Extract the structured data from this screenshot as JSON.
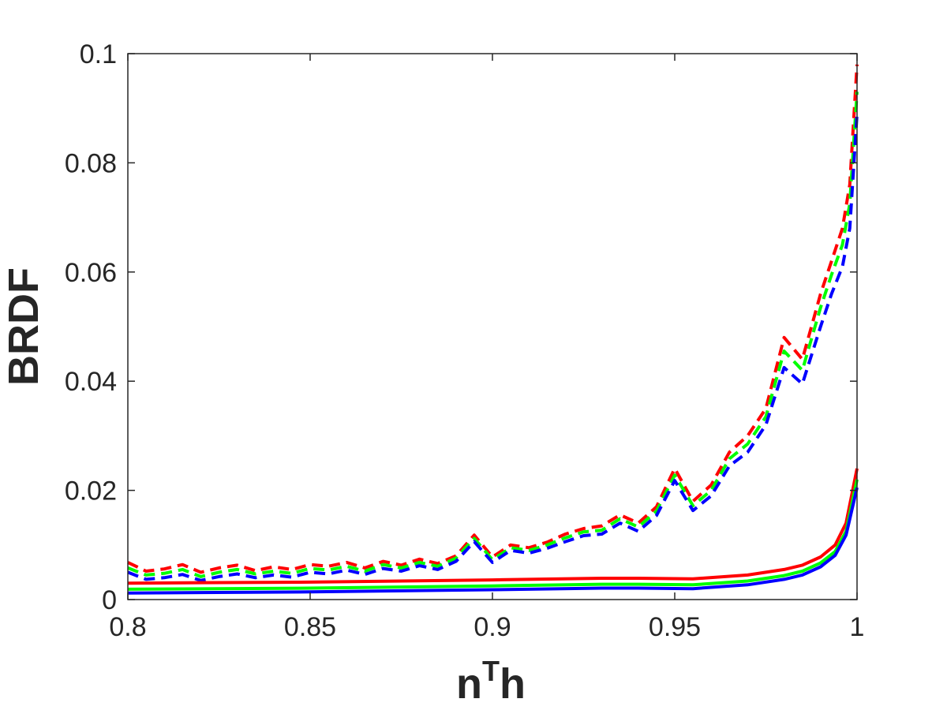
{
  "chart_data": {
    "type": "line",
    "title": "",
    "xlabel": {
      "base": "n",
      "superscript": "T",
      "tail": "h"
    },
    "ylabel": "BRDF",
    "xlim": [
      0.8,
      1.0
    ],
    "ylim": [
      0,
      0.1
    ],
    "xticks": [
      0.8,
      0.85,
      0.9,
      0.95,
      1.0
    ],
    "xtick_labels": [
      "0.8",
      "0.85",
      "0.9",
      "0.95",
      "1"
    ],
    "yticks": [
      0,
      0.02,
      0.04,
      0.06,
      0.08,
      0.1
    ],
    "ytick_labels": [
      "0",
      "0.02",
      "0.04",
      "0.06",
      "0.08",
      "0.1"
    ],
    "grid": false,
    "box": true,
    "series": [
      {
        "color": "#ff0000",
        "style": "dashed",
        "x": [
          0.8,
          0.805,
          0.81,
          0.815,
          0.82,
          0.825,
          0.83,
          0.835,
          0.84,
          0.845,
          0.85,
          0.855,
          0.86,
          0.865,
          0.87,
          0.875,
          0.88,
          0.885,
          0.89,
          0.895,
          0.9,
          0.905,
          0.91,
          0.915,
          0.92,
          0.925,
          0.93,
          0.935,
          0.94,
          0.945,
          0.95,
          0.955,
          0.96,
          0.965,
          0.97,
          0.975,
          0.98,
          0.985,
          0.99,
          0.993,
          0.996,
          0.998,
          1.0
        ],
        "y": [
          0.0068,
          0.0052,
          0.0056,
          0.0064,
          0.005,
          0.0058,
          0.0063,
          0.0053,
          0.006,
          0.0055,
          0.0064,
          0.0061,
          0.0068,
          0.0058,
          0.007,
          0.0063,
          0.0074,
          0.0066,
          0.008,
          0.0118,
          0.0078,
          0.01,
          0.0095,
          0.0105,
          0.012,
          0.013,
          0.0135,
          0.0155,
          0.014,
          0.017,
          0.024,
          0.018,
          0.021,
          0.027,
          0.03,
          0.035,
          0.048,
          0.044,
          0.056,
          0.062,
          0.068,
          0.076,
          0.098
        ]
      },
      {
        "color": "#00ff00",
        "style": "dashed",
        "x": [
          0.8,
          0.805,
          0.81,
          0.815,
          0.82,
          0.825,
          0.83,
          0.835,
          0.84,
          0.845,
          0.85,
          0.855,
          0.86,
          0.865,
          0.87,
          0.875,
          0.88,
          0.885,
          0.89,
          0.895,
          0.9,
          0.905,
          0.91,
          0.915,
          0.92,
          0.925,
          0.93,
          0.935,
          0.94,
          0.945,
          0.95,
          0.955,
          0.96,
          0.965,
          0.97,
          0.975,
          0.98,
          0.985,
          0.99,
          0.993,
          0.996,
          0.998,
          1.0
        ],
        "y": [
          0.0058,
          0.0045,
          0.0048,
          0.0055,
          0.0042,
          0.005,
          0.0055,
          0.0047,
          0.0052,
          0.0048,
          0.0057,
          0.0054,
          0.0061,
          0.0052,
          0.0064,
          0.0058,
          0.0068,
          0.0061,
          0.0076,
          0.0112,
          0.0073,
          0.0095,
          0.009,
          0.01,
          0.0113,
          0.0124,
          0.0127,
          0.0148,
          0.0133,
          0.0162,
          0.0228,
          0.0172,
          0.02,
          0.0258,
          0.0285,
          0.0335,
          0.0455,
          0.042,
          0.0535,
          0.0595,
          0.065,
          0.0725,
          0.093
        ]
      },
      {
        "color": "#0000ff",
        "style": "dashed",
        "x": [
          0.8,
          0.805,
          0.81,
          0.815,
          0.82,
          0.825,
          0.83,
          0.835,
          0.84,
          0.845,
          0.85,
          0.855,
          0.86,
          0.865,
          0.87,
          0.875,
          0.88,
          0.885,
          0.89,
          0.895,
          0.9,
          0.905,
          0.91,
          0.915,
          0.92,
          0.925,
          0.93,
          0.935,
          0.94,
          0.945,
          0.95,
          0.955,
          0.96,
          0.965,
          0.97,
          0.975,
          0.98,
          0.985,
          0.99,
          0.993,
          0.996,
          0.998,
          1.0
        ],
        "y": [
          0.005,
          0.0037,
          0.004,
          0.0046,
          0.0035,
          0.0042,
          0.0047,
          0.004,
          0.0045,
          0.0041,
          0.005,
          0.0047,
          0.0054,
          0.0046,
          0.0057,
          0.0052,
          0.0062,
          0.0055,
          0.007,
          0.0106,
          0.0068,
          0.009,
          0.0085,
          0.0094,
          0.0106,
          0.0117,
          0.012,
          0.014,
          0.0125,
          0.0154,
          0.0218,
          0.0163,
          0.019,
          0.0245,
          0.027,
          0.032,
          0.0425,
          0.0395,
          0.05,
          0.056,
          0.061,
          0.068,
          0.089
        ]
      },
      {
        "color": "#ff0000",
        "style": "solid",
        "x": [
          0.8,
          0.85,
          0.9,
          0.93,
          0.94,
          0.955,
          0.97,
          0.98,
          0.985,
          0.99,
          0.994,
          0.997,
          1.0
        ],
        "y": [
          0.003,
          0.0032,
          0.0036,
          0.0039,
          0.0039,
          0.0038,
          0.0045,
          0.0055,
          0.0063,
          0.0078,
          0.01,
          0.014,
          0.024
        ]
      },
      {
        "color": "#00ff00",
        "style": "solid",
        "x": [
          0.8,
          0.85,
          0.9,
          0.93,
          0.94,
          0.955,
          0.97,
          0.98,
          0.985,
          0.99,
          0.994,
          0.997,
          1.0
        ],
        "y": [
          0.0019,
          0.0021,
          0.0025,
          0.0028,
          0.0028,
          0.0027,
          0.0034,
          0.0044,
          0.0052,
          0.0067,
          0.0088,
          0.0125,
          0.022
        ]
      },
      {
        "color": "#0000ff",
        "style": "solid",
        "x": [
          0.8,
          0.85,
          0.9,
          0.93,
          0.94,
          0.955,
          0.97,
          0.98,
          0.985,
          0.99,
          0.994,
          0.997,
          1.0
        ],
        "y": [
          0.0012,
          0.0014,
          0.0018,
          0.0021,
          0.0021,
          0.002,
          0.0027,
          0.0037,
          0.0045,
          0.006,
          0.0081,
          0.0118,
          0.0205
        ]
      }
    ]
  }
}
